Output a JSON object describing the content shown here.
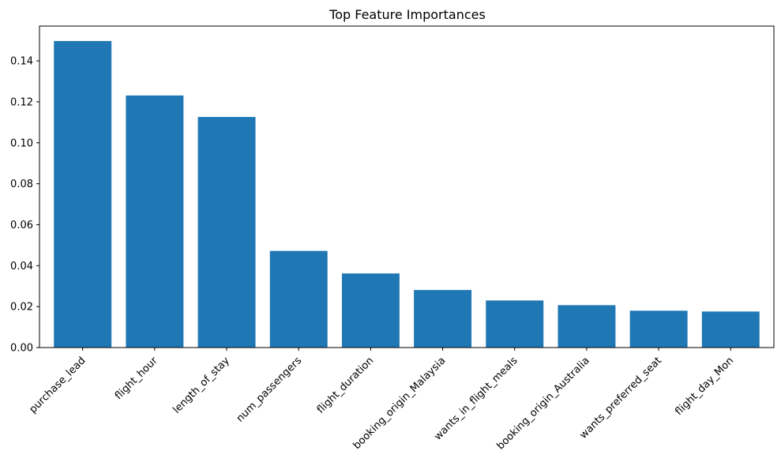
{
  "chart_data": {
    "type": "bar",
    "title": "Top Feature Importances",
    "xlabel": "",
    "ylabel": "",
    "categories": [
      "purchase_lead",
      "flight_hour",
      "length_of_stay",
      "num_passengers",
      "flight_duration",
      "booking_origin_Malaysia",
      "wants_in_flight_meals",
      "booking_origin_Australia",
      "wants_preferred_seat",
      "flight_day_Mon"
    ],
    "values": [
      0.1497,
      0.1231,
      0.1126,
      0.0472,
      0.0362,
      0.0281,
      0.023,
      0.0207,
      0.018,
      0.0176
    ],
    "ylim": [
      0,
      0.157
    ],
    "yticks": [
      0.0,
      0.02,
      0.04,
      0.06,
      0.08,
      0.1,
      0.12,
      0.14
    ],
    "ytick_labels": [
      "0.00",
      "0.02",
      "0.04",
      "0.06",
      "0.08",
      "0.10",
      "0.12",
      "0.14"
    ],
    "grid": false,
    "bar_color": "#1f77b4"
  }
}
